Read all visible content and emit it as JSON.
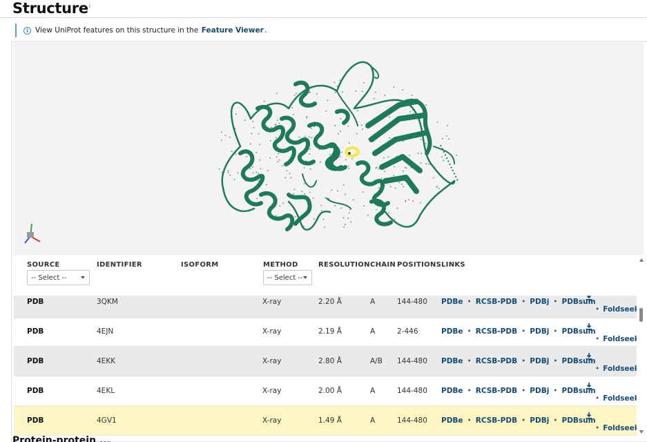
{
  "page": {
    "title": "Structure",
    "title_superscript": "i"
  },
  "banner": {
    "icon": "info-icon",
    "text_before": "View UniProt features on this structure in the",
    "link_text": "Feature Viewer",
    "text_after": "."
  },
  "viewer": {
    "molecule_color": "#1f7a5c",
    "ligand_color": "#f2e84b",
    "background": "#f3f3f3",
    "axes_icon": "axes-orientation-icon"
  },
  "table": {
    "columns": {
      "source": "SOURCE",
      "identifier": "IDENTIFIER",
      "isoform": "ISOFORM",
      "method": "METHOD",
      "resolution": "RESOLUTION",
      "chain": "CHAIN",
      "positions": "POSITIONS",
      "links": "LINKS"
    },
    "source_filter": {
      "value": "-- Select --"
    },
    "method_filter": {
      "value": "-- Select --"
    },
    "link_labels": {
      "pdbe": "PDBe",
      "rcsb": "RCSB-PDB",
      "pdbj": "PDBj",
      "pdbsum": "PDBsum",
      "foldseek": "Foldseek",
      "separator": "•"
    },
    "rows": [
      {
        "source": "PDB",
        "identifier": "3QKM",
        "isoform": "",
        "method": "X-ray",
        "resolution": "2.20 Å",
        "chain": "A",
        "positions": "144-480"
      },
      {
        "source": "PDB",
        "identifier": "4EJN",
        "isoform": "",
        "method": "X-ray",
        "resolution": "2.19 Å",
        "chain": "A",
        "positions": "2-446"
      },
      {
        "source": "PDB",
        "identifier": "4EKK",
        "isoform": "",
        "method": "X-ray",
        "resolution": "2.80 Å",
        "chain": "A/B",
        "positions": "144-480"
      },
      {
        "source": "PDB",
        "identifier": "4EKL",
        "isoform": "",
        "method": "X-ray",
        "resolution": "2.00 Å",
        "chain": "A",
        "positions": "144-480"
      },
      {
        "source": "PDB",
        "identifier": "4GV1",
        "isoform": "",
        "method": "X-ray",
        "resolution": "1.49 Å",
        "chain": "A",
        "positions": "144-480"
      }
    ]
  },
  "next_section": {
    "title": "Protein-protein ... "
  }
}
